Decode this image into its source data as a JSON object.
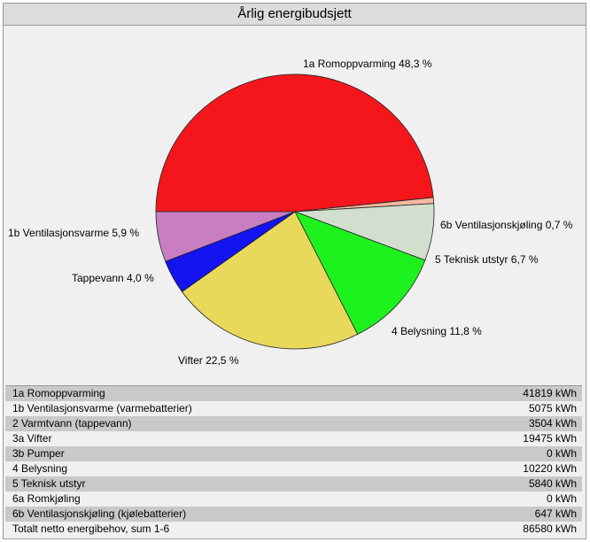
{
  "window": {
    "title": "Årlig energibudsjett"
  },
  "chart_data": {
    "type": "pie",
    "slices": [
      {
        "label": "1a Romoppvarming 48,3 %",
        "value": 48.3,
        "color": "#f5161c"
      },
      {
        "label": "6b Ventilasjonskjøling 0,7 %",
        "value": 0.7,
        "color": "#f3b8a0"
      },
      {
        "label": "5  Teknisk utstyr 6,7 %",
        "value": 6.7,
        "color": "#d2dfcf"
      },
      {
        "label": "4  Belysning 11,8 %",
        "value": 11.8,
        "color": "#1ef21e"
      },
      {
        "label": "Vifter 22,5 %",
        "value": 22.5,
        "color": "#e8d95a"
      },
      {
        "label": "Tappevann 4,0 %",
        "value": 4.0,
        "color": "#1414f0"
      },
      {
        "label": "1b Ventilasjonsvarme 5,9 %",
        "value": 5.9,
        "color": "#c87ec0"
      }
    ]
  },
  "table": {
    "rows": [
      {
        "label": "1a Romoppvarming",
        "value": "41819 kWh"
      },
      {
        "label": "1b Ventilasjonsvarme (varmebatterier)",
        "value": "5075 kWh"
      },
      {
        "label": "2   Varmtvann (tappevann)",
        "value": "3504 kWh"
      },
      {
        "label": "3a Vifter",
        "value": "19475 kWh"
      },
      {
        "label": "3b Pumper",
        "value": "0 kWh"
      },
      {
        "label": "4   Belysning",
        "value": "10220 kWh"
      },
      {
        "label": "5   Teknisk utstyr",
        "value": "5840 kWh"
      },
      {
        "label": "6a Romkjøling",
        "value": "0 kWh"
      },
      {
        "label": "6b Ventilasjonskjøling (kjølebatterier)",
        "value": "647 kWh"
      },
      {
        "label": "Totalt netto energibehov, sum 1-6",
        "value": "86580 kWh"
      }
    ]
  }
}
